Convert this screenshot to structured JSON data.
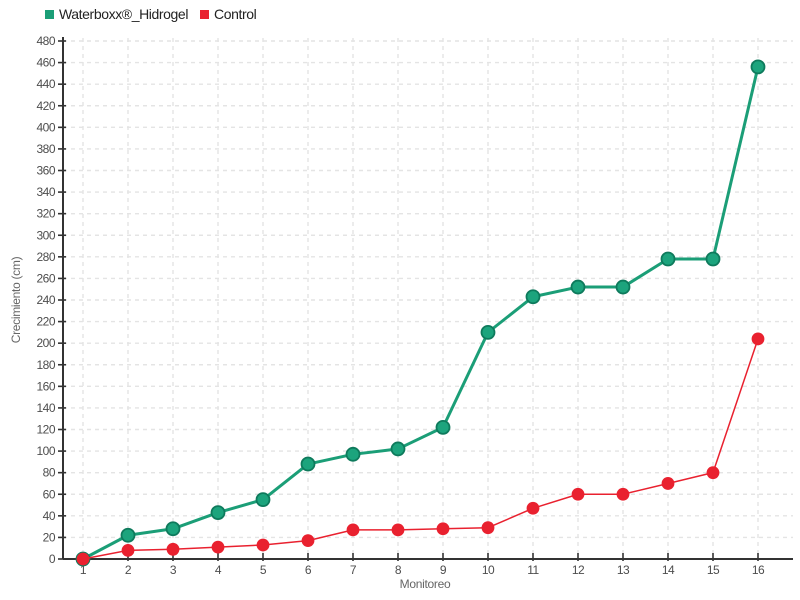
{
  "chart_data": {
    "type": "line",
    "title": "",
    "xlabel": "Monitoreo",
    "ylabel": "Crecimiento (cm)",
    "x": [
      1,
      2,
      3,
      4,
      5,
      6,
      7,
      8,
      9,
      10,
      11,
      12,
      13,
      14,
      15,
      16
    ],
    "xlim": [
      1,
      16
    ],
    "ylim": [
      0,
      480
    ],
    "ytick_step": 20,
    "grid": "dashed-both",
    "legend_position": "top-left",
    "series": [
      {
        "name": "Waterboxx®_Hidrogel",
        "color": "#1b9e77",
        "marker_fill": "#1ca47d",
        "marker_stroke": "#0e7a5c",
        "line_width": 3,
        "marker_radius": 6.5,
        "values": [
          0,
          22,
          28,
          43,
          55,
          88,
          97,
          102,
          122,
          210,
          243,
          252,
          252,
          278,
          278,
          456
        ]
      },
      {
        "name": "Control",
        "color": "#e9212f",
        "marker_fill": "#e9212f",
        "marker_stroke": "#e9212f",
        "line_width": 1.5,
        "marker_radius": 5.5,
        "values": [
          0,
          8,
          9,
          11,
          13,
          17,
          27,
          27,
          28,
          29,
          47,
          60,
          60,
          70,
          80,
          204
        ]
      }
    ],
    "colors": {
      "grid": "#e4e4e4",
      "axis": "#333333",
      "tick_label": "#4d4d4d",
      "axis_title": "#666666"
    }
  }
}
